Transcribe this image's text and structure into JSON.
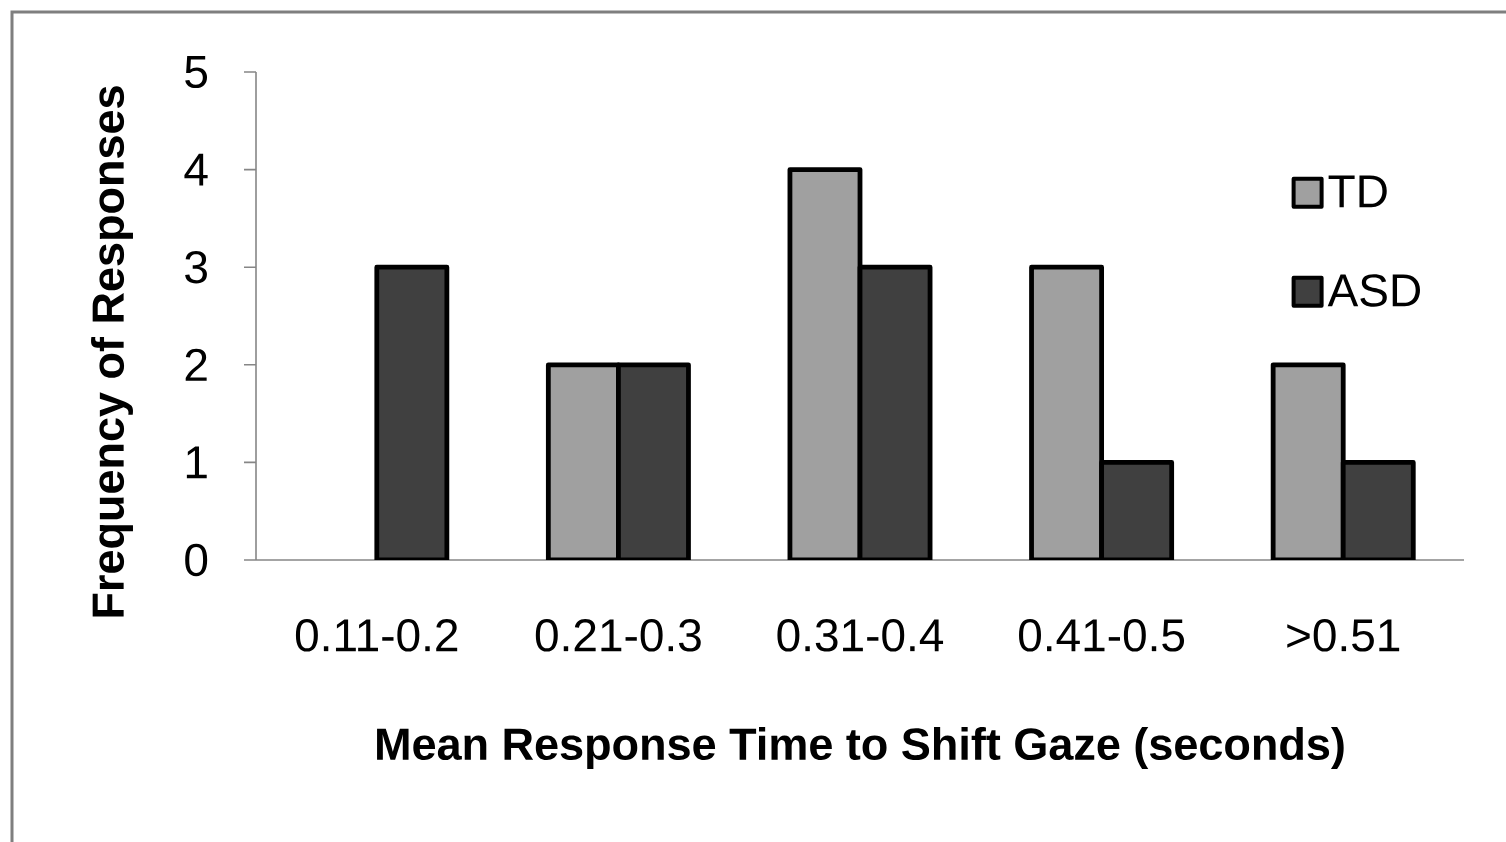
{
  "chart_data": {
    "type": "bar",
    "xlabel": "Mean Response Time to Shift Gaze (seconds)",
    "ylabel": "Frequency of Responses",
    "categories": [
      "0.11-0.2",
      "0.21-0.3",
      "0.31-0.4",
      "0.41-0.5",
      ">0.51"
    ],
    "series": [
      {
        "name": "TD",
        "color": "#a0a0a0",
        "values": [
          null,
          2,
          4,
          3,
          2
        ]
      },
      {
        "name": "ASD",
        "color": "#404040",
        "values": [
          3,
          2,
          3,
          1,
          1
        ]
      }
    ],
    "ylim": [
      0,
      5
    ],
    "yticks": [
      0,
      1,
      2,
      3,
      4,
      5
    ],
    "legend": "top right"
  }
}
